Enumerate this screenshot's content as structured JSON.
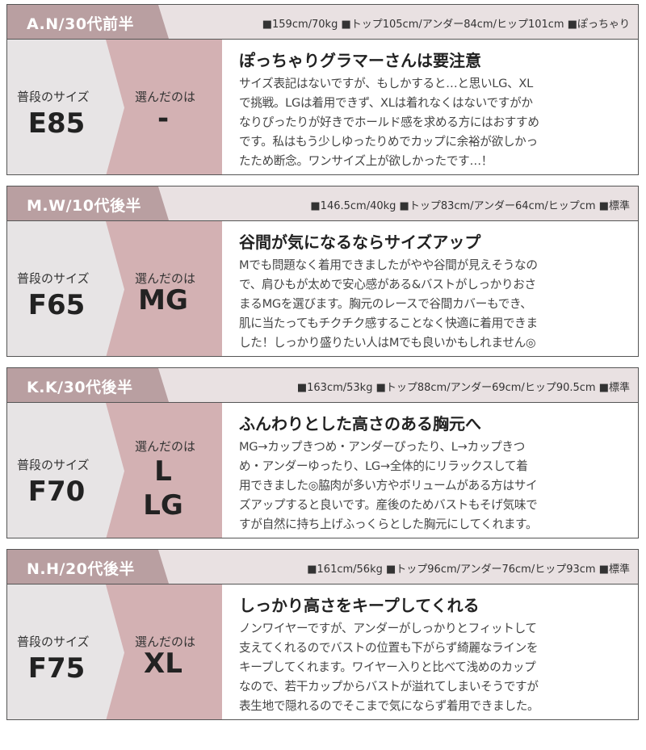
{
  "labels": {
    "usual_size": "普段のサイズ",
    "chosen": "選んだのは"
  },
  "colors": {
    "tag": "#b99fa1",
    "header_bg": "#e9e1e2",
    "usual_bg": "#e7e4e5",
    "chosen_bg": "#d3b1b3"
  },
  "reviews": [
    {
      "name": "A.N/30代前半",
      "stats": "■159cm/70kg ■トップ105cm/アンダー84cm/ヒップ101cm ■ぽっちゃり",
      "usual": "E85",
      "chosen": [
        "-"
      ],
      "title": "ぽっちゃりグラマーさんは要注意",
      "lines": [
        "サイズ表記はないですが、もしかすると…と思いLG、XL",
        "で挑戦。LGは着用できず、XLは着れなくはないですがか",
        "なりぴったりが好きでホールド感を求める方にはおすすめ",
        "です。私はもう少しゆったりめでカップに余裕が欲しかっ",
        "たため断念。ワンサイズ上が欲しかったです…！"
      ]
    },
    {
      "name": "M.W/10代後半",
      "stats": "■146.5cm/40kg ■トップ83cm/アンダー64cm/ヒップcm ■標準",
      "usual": "F65",
      "chosen": [
        "MG"
      ],
      "title": "谷間が気になるならサイズアップ",
      "lines": [
        "Mでも問題なく着用できましたがやや谷間が見えそうなの",
        "で、肩ひもが太めで安心感がある&バストがしっかりおさ",
        "まるMGを選びます。胸元のレースで谷間カバーもでき、",
        "肌に当たってもチクチク感することなく快適に着用できま",
        "した！しっかり盛りたい人はMでも良いかもしれません◎"
      ]
    },
    {
      "name": "K.K/30代後半",
      "stats": "■163cm/53kg ■トップ88cm/アンダー69cm/ヒップ90.5cm ■標準",
      "usual": "F70",
      "chosen": [
        "L",
        "LG"
      ],
      "title": "ふんわりとした高さのある胸元へ",
      "lines": [
        "MG→カップきつめ・アンダーぴったり、L→カップきつ",
        "め・アンダーゆったり、LG→全体的にリラックスして着",
        "用できました◎脇肉が多い方やボリュームがある方はサイ",
        "ズアップすると良いです。産後のためバストもそげ気味で",
        "すが自然に持ち上げふっくらとした胸元にしてくれます。"
      ]
    },
    {
      "name": "N.H/20代後半",
      "stats": "■161cm/56kg ■トップ96cm/アンダー76cm/ヒップ93cm ■標準",
      "usual": "F75",
      "chosen": [
        "XL"
      ],
      "title": "しっかり高さをキープしてくれる",
      "lines": [
        "ノンワイヤーですが、アンダーがしっかりとフィットして",
        "支えてくれるのでバストの位置も下がらず綺麗なラインを",
        "キープしてくれます。ワイヤー入りと比べて浅めのカップ",
        "なので、若干カップからバストが溢れてしまいそうですが",
        "表生地で隠れるのでそこまで気にならず着用できました。"
      ]
    }
  ]
}
